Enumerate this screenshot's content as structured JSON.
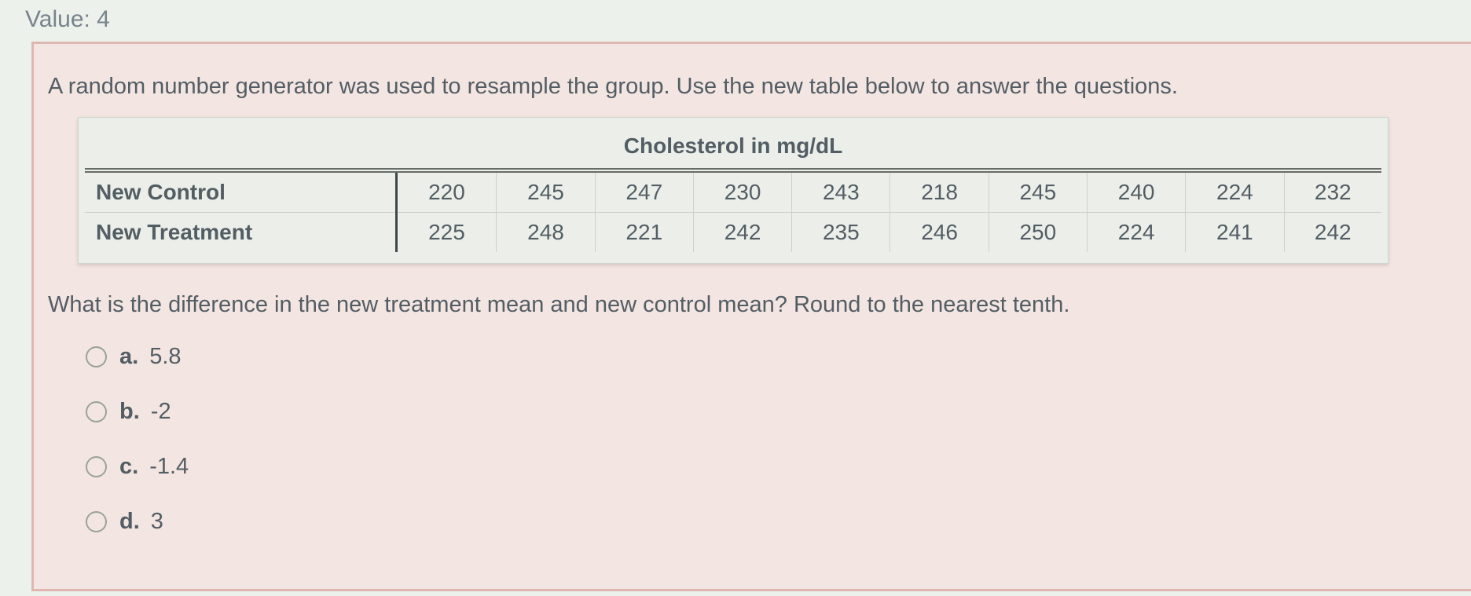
{
  "header": {
    "value_label": "Value: 4"
  },
  "question": {
    "prompt": "A random number generator was used to resample the group. Use the new table below to answer the questions.",
    "table": {
      "title": "Cholesterol in mg/dL",
      "rows": [
        {
          "label": "New Control",
          "values": [
            "220",
            "245",
            "247",
            "230",
            "243",
            "218",
            "245",
            "240",
            "224",
            "232"
          ]
        },
        {
          "label": "New Treatment",
          "values": [
            "225",
            "248",
            "221",
            "242",
            "235",
            "246",
            "250",
            "224",
            "241",
            "242"
          ]
        }
      ]
    },
    "text": "What is the difference in the new treatment mean and new control mean? Round to the nearest tenth.",
    "options": [
      {
        "letter": "a.",
        "text": "5.8",
        "selected": false
      },
      {
        "letter": "b.",
        "text": "-2",
        "selected": false
      },
      {
        "letter": "c.",
        "text": "-1.4",
        "selected": false
      },
      {
        "letter": "d.",
        "text": "3",
        "selected": false
      }
    ]
  },
  "colors": {
    "page-bg": "#edf1ec",
    "card-bg": "#f3e5e1",
    "card-border": "#dfb7b0",
    "table-bg": "#ecefe9",
    "text": "#535d64",
    "muted": "#78838b"
  }
}
